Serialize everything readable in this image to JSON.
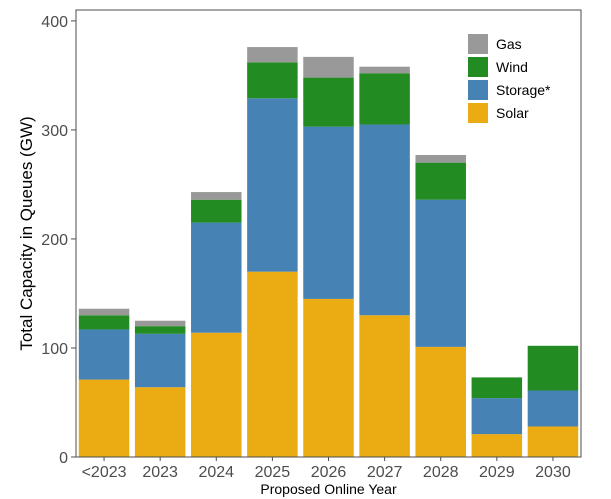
{
  "chart_data": {
    "type": "bar",
    "stacked": true,
    "title": "",
    "xlabel": "Proposed Online Year",
    "ylabel": "Total Capacity in Queues (GW)",
    "ylim": [
      0,
      410
    ],
    "yticks": [
      0,
      100,
      200,
      300,
      400
    ],
    "grid": false,
    "legend_position": "top-right",
    "categories": [
      "<2023",
      "2023",
      "2024",
      "2025",
      "2026",
      "2027",
      "2028",
      "2029",
      "2030"
    ],
    "series": [
      {
        "name": "Solar",
        "color": "#EBAB12",
        "values": [
          71,
          64,
          114,
          170,
          145,
          130,
          101,
          21,
          28
        ]
      },
      {
        "name": "Storage*",
        "color": "#4682B4",
        "values": [
          46,
          49,
          101,
          159,
          158,
          175,
          135,
          33,
          33
        ]
      },
      {
        "name": "Wind",
        "color": "#228B22",
        "values": [
          13,
          7,
          21,
          33,
          45,
          47,
          34,
          19,
          41
        ]
      },
      {
        "name": "Gas",
        "color": "#999999",
        "values": [
          6,
          5,
          7,
          14,
          19,
          6,
          7,
          0,
          0
        ]
      }
    ],
    "legend_order": [
      "Gas",
      "Wind",
      "Storage*",
      "Solar"
    ]
  }
}
